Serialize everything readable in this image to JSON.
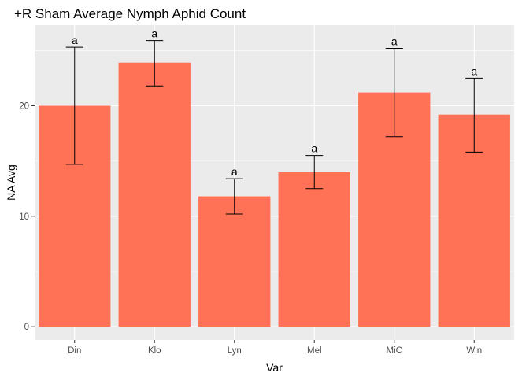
{
  "chart_data": {
    "type": "bar",
    "title": "+R Sham Average Nymph Aphid Count",
    "xlabel": "Var",
    "ylabel": "NA Avg",
    "categories": [
      "Din",
      "Klo",
      "Lyn",
      "Mel",
      "MiC",
      "Win"
    ],
    "values": [
      20.0,
      23.9,
      11.8,
      14.0,
      21.2,
      19.2
    ],
    "error_low": [
      14.7,
      21.8,
      10.2,
      12.5,
      17.2,
      15.8
    ],
    "error_high": [
      25.3,
      25.9,
      13.4,
      15.5,
      25.2,
      22.5
    ],
    "annotations": [
      "a",
      "a",
      "a",
      "a",
      "a",
      "a"
    ],
    "ylim": [
      -1.2,
      27.3
    ],
    "yticks": [
      0,
      10,
      20
    ],
    "grid": true,
    "legend": "none",
    "bar_color": "#FF7256",
    "panel_background": "#EBEBEB"
  }
}
